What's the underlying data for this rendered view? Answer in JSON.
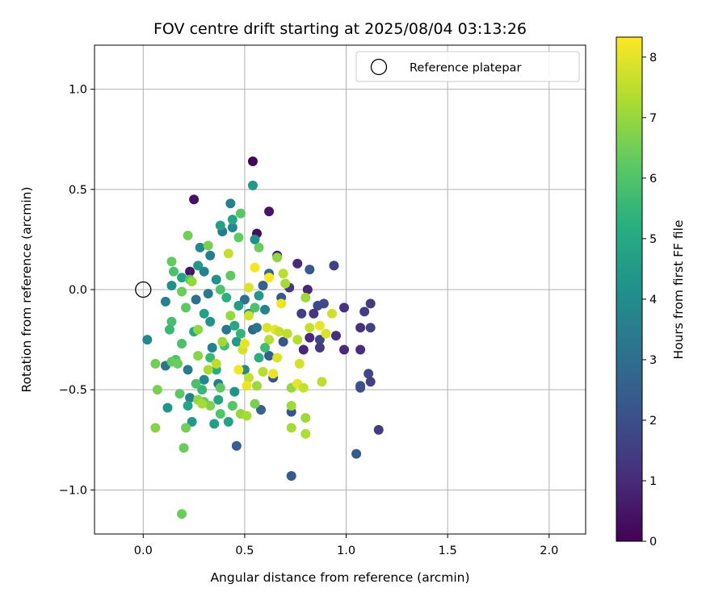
{
  "chart_data": {
    "type": "scatter",
    "title": "FOV centre drift starting at 2025/08/04 03:13:26",
    "xlabel": "Angular distance from reference (arcmin)",
    "ylabel": "Rotation from reference (arcmin)",
    "xlim": [
      -0.24,
      2.18
    ],
    "ylim": [
      -1.22,
      1.22
    ],
    "xticks": [
      0.0,
      0.5,
      1.0,
      1.5,
      2.0
    ],
    "xtick_labels": [
      "0.0",
      "0.5",
      "1.0",
      "1.5",
      "2.0"
    ],
    "yticks": [
      -1.0,
      -0.5,
      0.0,
      0.5,
      1.0
    ],
    "ytick_labels": [
      "−1.0",
      "−0.5",
      "0.0",
      "0.5",
      "1.0"
    ],
    "grid": true,
    "colormap": "viridis",
    "colorbar": {
      "label": "Hours from first FF file",
      "range": [
        0,
        8.33
      ],
      "ticks": [
        0,
        1,
        2,
        3,
        4,
        5,
        6,
        7,
        8
      ],
      "tick_labels": [
        "0",
        "1",
        "2",
        "3",
        "4",
        "5",
        "6",
        "7",
        "8"
      ]
    },
    "legend": {
      "position": "top-right",
      "entries": [
        {
          "label": "Reference platepar",
          "marker": "open-circle"
        }
      ]
    },
    "reference_point": {
      "x": 0.0,
      "y": 0.0
    },
    "series": [
      {
        "points": [
          {
            "x": 0.54,
            "y": 0.64,
            "c": 0.1
          },
          {
            "x": 0.25,
            "y": 0.45,
            "c": 0.4
          },
          {
            "x": 0.62,
            "y": 0.39,
            "c": 0.5
          },
          {
            "x": 0.56,
            "y": 0.28,
            "c": 0.3
          },
          {
            "x": 0.66,
            "y": 0.17,
            "c": 0.6
          },
          {
            "x": 0.23,
            "y": 0.09,
            "c": 0.5
          },
          {
            "x": 0.76,
            "y": 0.13,
            "c": 1.0
          },
          {
            "x": 0.94,
            "y": 0.12,
            "c": 1.6
          },
          {
            "x": 0.81,
            "y": 0.0,
            "c": 0.9
          },
          {
            "x": 0.72,
            "y": 0.01,
            "c": 1.3
          },
          {
            "x": 0.99,
            "y": -0.09,
            "c": 1.2
          },
          {
            "x": 1.12,
            "y": -0.07,
            "c": 1.4
          },
          {
            "x": 1.09,
            "y": -0.11,
            "c": 1.5
          },
          {
            "x": 0.86,
            "y": -0.08,
            "c": 1.8
          },
          {
            "x": 0.89,
            "y": -0.07,
            "c": 1.9
          },
          {
            "x": 0.84,
            "y": -0.12,
            "c": 1.3
          },
          {
            "x": 0.78,
            "y": -0.12,
            "c": 1.5
          },
          {
            "x": 1.07,
            "y": -0.19,
            "c": 1.2
          },
          {
            "x": 1.12,
            "y": -0.19,
            "c": 1.6
          },
          {
            "x": 0.95,
            "y": -0.23,
            "c": 1.1
          },
          {
            "x": 0.82,
            "y": -0.24,
            "c": 1.0
          },
          {
            "x": 0.87,
            "y": -0.25,
            "c": 1.7
          },
          {
            "x": 0.79,
            "y": -0.3,
            "c": 0.9
          },
          {
            "x": 0.99,
            "y": -0.3,
            "c": 1.0
          },
          {
            "x": 1.07,
            "y": -0.3,
            "c": 1.1
          },
          {
            "x": 0.87,
            "y": -0.29,
            "c": 1.4
          },
          {
            "x": 0.69,
            "y": -0.26,
            "c": 2.1
          },
          {
            "x": 1.11,
            "y": -0.42,
            "c": 1.8
          },
          {
            "x": 1.12,
            "y": -0.46,
            "c": 1.6
          },
          {
            "x": 1.07,
            "y": -0.48,
            "c": 2.2
          },
          {
            "x": 1.07,
            "y": -0.49,
            "c": 2.0
          },
          {
            "x": 1.16,
            "y": -0.7,
            "c": 1.5
          },
          {
            "x": 1.05,
            "y": -0.82,
            "c": 2.3
          },
          {
            "x": 0.73,
            "y": -0.93,
            "c": 2.4
          },
          {
            "x": 0.73,
            "y": -0.61,
            "c": 2.2
          },
          {
            "x": 0.46,
            "y": -0.78,
            "c": 2.5
          },
          {
            "x": 0.58,
            "y": -0.6,
            "c": 2.6
          },
          {
            "x": 0.64,
            "y": -0.44,
            "c": 2.2
          },
          {
            "x": 0.62,
            "y": -0.33,
            "c": 2.4
          },
          {
            "x": 0.54,
            "y": -0.2,
            "c": 2.7
          },
          {
            "x": 0.68,
            "y": -0.04,
            "c": 2.3
          },
          {
            "x": 0.59,
            "y": 0.02,
            "c": 2.6
          },
          {
            "x": 0.62,
            "y": 0.08,
            "c": 2.9
          },
          {
            "x": 0.5,
            "y": -0.05,
            "c": 3.1
          },
          {
            "x": 0.54,
            "y": 0.52,
            "c": 4.4
          },
          {
            "x": 0.43,
            "y": 0.43,
            "c": 3.6
          },
          {
            "x": 0.39,
            "y": 0.29,
            "c": 3.4
          },
          {
            "x": 0.44,
            "y": 0.31,
            "c": 3.8
          },
          {
            "x": 0.38,
            "y": 0.32,
            "c": 4.7
          },
          {
            "x": 0.44,
            "y": 0.35,
            "c": 4.9
          },
          {
            "x": 0.55,
            "y": 0.25,
            "c": 4.1
          },
          {
            "x": 0.28,
            "y": 0.21,
            "c": 3.9
          },
          {
            "x": 0.33,
            "y": 0.17,
            "c": 3.5
          },
          {
            "x": 0.27,
            "y": 0.12,
            "c": 4.4
          },
          {
            "x": 0.3,
            "y": 0.09,
            "c": 3.7
          },
          {
            "x": 0.19,
            "y": 0.06,
            "c": 4.8
          },
          {
            "x": 0.14,
            "y": 0.02,
            "c": 4.1
          },
          {
            "x": 0.11,
            "y": -0.06,
            "c": 3.6
          },
          {
            "x": 0.02,
            "y": -0.25,
            "c": 3.9
          },
          {
            "x": 0.11,
            "y": -0.38,
            "c": 3.2
          },
          {
            "x": 0.22,
            "y": -0.4,
            "c": 3.4
          },
          {
            "x": 0.23,
            "y": -0.54,
            "c": 3.6
          },
          {
            "x": 0.12,
            "y": -0.59,
            "c": 4.3
          },
          {
            "x": 0.22,
            "y": -0.58,
            "c": 4.9
          },
          {
            "x": 0.24,
            "y": -0.66,
            "c": 4.4
          },
          {
            "x": 0.35,
            "y": -0.67,
            "c": 4.6
          },
          {
            "x": 0.42,
            "y": -0.66,
            "c": 4.8
          },
          {
            "x": 0.37,
            "y": -0.47,
            "c": 3.5
          },
          {
            "x": 0.3,
            "y": -0.45,
            "c": 3.8
          },
          {
            "x": 0.34,
            "y": -0.29,
            "c": 3.6
          },
          {
            "x": 0.41,
            "y": -0.2,
            "c": 3.3
          },
          {
            "x": 0.26,
            "y": -0.05,
            "c": 3.1
          },
          {
            "x": 0.32,
            "y": -0.02,
            "c": 3.4
          },
          {
            "x": 0.36,
            "y": 0.05,
            "c": 4.2
          },
          {
            "x": 0.3,
            "y": -0.12,
            "c": 4.7
          },
          {
            "x": 0.25,
            "y": -0.21,
            "c": 5.0
          },
          {
            "x": 0.41,
            "y": -0.04,
            "c": 5.3
          },
          {
            "x": 0.47,
            "y": -0.08,
            "c": 4.6
          },
          {
            "x": 0.52,
            "y": -0.12,
            "c": 4.0
          },
          {
            "x": 0.56,
            "y": -0.19,
            "c": 3.2
          },
          {
            "x": 0.6,
            "y": -0.1,
            "c": 3.7
          },
          {
            "x": 0.57,
            "y": -0.03,
            "c": 4.4
          },
          {
            "x": 0.46,
            "y": -0.26,
            "c": 4.5
          },
          {
            "x": 0.5,
            "y": -0.4,
            "c": 3.9
          },
          {
            "x": 0.45,
            "y": -0.51,
            "c": 4.2
          },
          {
            "x": 0.37,
            "y": -0.55,
            "c": 4.8
          },
          {
            "x": 0.29,
            "y": -0.5,
            "c": 5.5
          },
          {
            "x": 0.36,
            "y": -0.4,
            "c": 5.1
          },
          {
            "x": 0.33,
            "y": -0.34,
            "c": 5.6
          },
          {
            "x": 0.4,
            "y": -0.28,
            "c": 5.8
          },
          {
            "x": 0.48,
            "y": -0.22,
            "c": 5.4
          },
          {
            "x": 0.55,
            "y": -0.09,
            "c": 5.9
          },
          {
            "x": 0.38,
            "y": 0.0,
            "c": 6.0
          },
          {
            "x": 0.43,
            "y": 0.07,
            "c": 6.2
          },
          {
            "x": 0.47,
            "y": 0.26,
            "c": 6.3
          },
          {
            "x": 0.48,
            "y": 0.38,
            "c": 6.1
          },
          {
            "x": 0.57,
            "y": 0.21,
            "c": 6.4
          },
          {
            "x": 0.22,
            "y": 0.27,
            "c": 6.5
          },
          {
            "x": 0.32,
            "y": 0.22,
            "c": 6.6
          },
          {
            "x": 0.14,
            "y": 0.14,
            "c": 6.3
          },
          {
            "x": 0.15,
            "y": 0.09,
            "c": 5.9
          },
          {
            "x": 0.23,
            "y": 0.05,
            "c": 6.1
          },
          {
            "x": 0.19,
            "y": -0.01,
            "c": 6.4
          },
          {
            "x": 0.21,
            "y": -0.09,
            "c": 6.2
          },
          {
            "x": 0.14,
            "y": -0.16,
            "c": 5.8
          },
          {
            "x": 0.13,
            "y": -0.2,
            "c": 5.6
          },
          {
            "x": 0.19,
            "y": -0.27,
            "c": 5.9
          },
          {
            "x": 0.16,
            "y": -0.35,
            "c": 6.0
          },
          {
            "x": 0.14,
            "y": -0.36,
            "c": 6.3
          },
          {
            "x": 0.06,
            "y": -0.37,
            "c": 6.5
          },
          {
            "x": 0.17,
            "y": -0.37,
            "c": 6.4
          },
          {
            "x": 0.07,
            "y": -0.5,
            "c": 6.6
          },
          {
            "x": 0.18,
            "y": -0.52,
            "c": 6.2
          },
          {
            "x": 0.06,
            "y": -0.69,
            "c": 6.8
          },
          {
            "x": 0.21,
            "y": -0.69,
            "c": 6.5
          },
          {
            "x": 0.2,
            "y": -0.79,
            "c": 6.4
          },
          {
            "x": 0.19,
            "y": -1.12,
            "c": 6.4
          },
          {
            "x": 0.26,
            "y": -0.47,
            "c": 5.9
          },
          {
            "x": 0.3,
            "y": -0.56,
            "c": 6.3
          },
          {
            "x": 0.33,
            "y": -0.58,
            "c": 6.7
          },
          {
            "x": 0.38,
            "y": -0.49,
            "c": 6.2
          },
          {
            "x": 0.38,
            "y": -0.62,
            "c": 6.0
          },
          {
            "x": 0.44,
            "y": -0.58,
            "c": 6.1
          },
          {
            "x": 0.48,
            "y": -0.62,
            "c": 7.0
          },
          {
            "x": 0.51,
            "y": -0.63,
            "c": 7.2
          },
          {
            "x": 0.55,
            "y": -0.57,
            "c": 6.6
          },
          {
            "x": 0.56,
            "y": -0.48,
            "c": 7.1
          },
          {
            "x": 0.59,
            "y": -0.41,
            "c": 7.4
          },
          {
            "x": 0.52,
            "y": -0.44,
            "c": 7.6
          },
          {
            "x": 0.49,
            "y": -0.3,
            "c": 7.8
          },
          {
            "x": 0.5,
            "y": -0.27,
            "c": 8.0
          },
          {
            "x": 0.47,
            "y": -0.4,
            "c": 8.2
          },
          {
            "x": 0.51,
            "y": -0.48,
            "c": 8.1
          },
          {
            "x": 0.64,
            "y": -0.42,
            "c": 8.1
          },
          {
            "x": 0.66,
            "y": -0.34,
            "c": 7.9
          },
          {
            "x": 0.62,
            "y": -0.25,
            "c": 7.4
          },
          {
            "x": 0.61,
            "y": -0.19,
            "c": 7.9
          },
          {
            "x": 0.65,
            "y": -0.2,
            "c": 8.0
          },
          {
            "x": 0.67,
            "y": -0.21,
            "c": 7.6
          },
          {
            "x": 0.71,
            "y": -0.22,
            "c": 7.5
          },
          {
            "x": 0.68,
            "y": -0.07,
            "c": 8.1
          },
          {
            "x": 0.66,
            "y": 0.16,
            "c": 6.9
          },
          {
            "x": 0.7,
            "y": 0.03,
            "c": 7.2
          },
          {
            "x": 0.69,
            "y": 0.08,
            "c": 7.5
          },
          {
            "x": 0.62,
            "y": 0.06,
            "c": 8.3
          },
          {
            "x": 0.55,
            "y": 0.11,
            "c": 8.2
          },
          {
            "x": 0.52,
            "y": 0.01,
            "c": 7.9
          },
          {
            "x": 0.52,
            "y": -0.13,
            "c": 7.8
          },
          {
            "x": 0.42,
            "y": 0.18,
            "c": 7.6
          },
          {
            "x": 0.43,
            "y": -0.13,
            "c": 7.0
          },
          {
            "x": 0.39,
            "y": -0.26,
            "c": 7.1
          },
          {
            "x": 0.36,
            "y": -0.37,
            "c": 7.5
          },
          {
            "x": 0.32,
            "y": -0.4,
            "c": 7.2
          },
          {
            "x": 0.27,
            "y": -0.33,
            "c": 6.8
          },
          {
            "x": 0.27,
            "y": -0.2,
            "c": 6.9
          },
          {
            "x": 0.24,
            "y": 0.04,
            "c": 7.0
          },
          {
            "x": 0.27,
            "y": -0.55,
            "c": 6.9
          },
          {
            "x": 0.29,
            "y": -0.57,
            "c": 7.2
          },
          {
            "x": 0.73,
            "y": -0.49,
            "c": 7.0
          },
          {
            "x": 0.73,
            "y": -0.58,
            "c": 7.1
          },
          {
            "x": 0.73,
            "y": -0.69,
            "c": 7.2
          },
          {
            "x": 0.76,
            "y": -0.47,
            "c": 8.0
          },
          {
            "x": 0.79,
            "y": -0.49,
            "c": 7.6
          },
          {
            "x": 0.8,
            "y": -0.64,
            "c": 7.1
          },
          {
            "x": 0.8,
            "y": -0.72,
            "c": 7.3
          },
          {
            "x": 0.77,
            "y": -0.37,
            "c": 7.8
          },
          {
            "x": 0.76,
            "y": -0.25,
            "c": 7.4
          },
          {
            "x": 0.82,
            "y": -0.19,
            "c": 7.6
          },
          {
            "x": 0.8,
            "y": -0.04,
            "c": 7.1
          },
          {
            "x": 0.87,
            "y": -0.18,
            "c": 8.0
          },
          {
            "x": 0.88,
            "y": -0.46,
            "c": 7.5
          },
          {
            "x": 0.9,
            "y": -0.22,
            "c": 7.9
          },
          {
            "x": 0.93,
            "y": -0.12,
            "c": 7.7
          },
          {
            "x": 0.82,
            "y": 0.1,
            "c": 2.3
          },
          {
            "x": 0.6,
            "y": -0.29,
            "c": 5.7
          },
          {
            "x": 0.57,
            "y": -0.34,
            "c": 5.2
          },
          {
            "x": 0.33,
            "y": -0.16,
            "c": 4.2
          },
          {
            "x": 0.45,
            "y": -0.18,
            "c": 5.0
          }
        ]
      }
    ]
  }
}
